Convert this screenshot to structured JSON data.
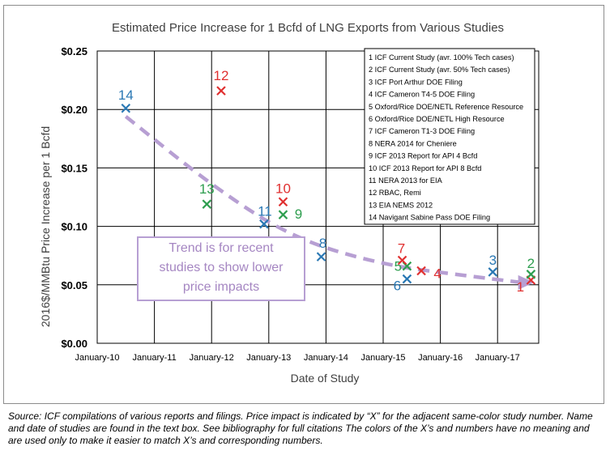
{
  "chart_data": {
    "type": "scatter",
    "title": "Estimated Price Increase for 1 Bcfd of LNG Exports from Various Studies",
    "xlabel": "Date of Study",
    "ylabel": "2016$/MMBtu Price Increase per 1 Bcfd",
    "x_ticks": [
      "January-10",
      "January-11",
      "January-12",
      "January-13",
      "January-14",
      "January-15",
      "January-16",
      "January-17"
    ],
    "y_ticks": [
      "$0.00",
      "$0.05",
      "$0.10",
      "$0.15",
      "$0.20",
      "$0.25"
    ],
    "xlim": [
      "2010-01",
      "2017-11"
    ],
    "ylim": [
      0,
      0.25
    ],
    "grid": true,
    "points": [
      {
        "id": "1",
        "x": "2017-08",
        "y": 0.054,
        "color": "#e03030"
      },
      {
        "id": "2",
        "x": "2017-08",
        "y": 0.059,
        "color": "#2e9e4f"
      },
      {
        "id": "3",
        "x": "2016-12",
        "y": 0.061,
        "color": "#2a78b4"
      },
      {
        "id": "4",
        "x": "2015-09",
        "y": 0.062,
        "color": "#e03030"
      },
      {
        "id": "5",
        "x": "2015-06",
        "y": 0.066,
        "color": "#2e9e4f"
      },
      {
        "id": "6",
        "x": "2015-06",
        "y": 0.055,
        "color": "#2a78b4"
      },
      {
        "id": "7",
        "x": "2015-05",
        "y": 0.071,
        "color": "#e03030"
      },
      {
        "id": "8",
        "x": "2013-12",
        "y": 0.074,
        "color": "#2a78b4"
      },
      {
        "id": "9",
        "x": "2013-04",
        "y": 0.11,
        "color": "#2e9e4f"
      },
      {
        "id": "10",
        "x": "2013-04",
        "y": 0.121,
        "color": "#e03030"
      },
      {
        "id": "11",
        "x": "2012-12",
        "y": 0.102,
        "color": "#2a78b4"
      },
      {
        "id": "12",
        "x": "2012-03",
        "y": 0.216,
        "color": "#e03030"
      },
      {
        "id": "13",
        "x": "2011-12",
        "y": 0.119,
        "color": "#2e9e4f"
      },
      {
        "id": "14",
        "x": "2010-07",
        "y": 0.201,
        "color": "#2a78b4"
      }
    ],
    "legend": {
      "placement": "top-right",
      "entries": [
        "1 ICF Current Study (avr. 100% Tech cases)",
        "2 ICF Current Study (avr. 50% Tech cases)",
        "3 ICF Port Arthur DOE Filing",
        "4 ICF Cameron T4-5 DOE Filing",
        "5 Oxford/Rice DOE/NETL Reference Resource",
        "6 Oxford/Rice DOE/NETL High Resource",
        "7 ICF Cameron T1-3 DOE Filing",
        "8 NERA 2014 for Cheniere",
        "9 ICF 2013 Report for API 4 Bcfd",
        "10 ICF 2013 Report for API 8 Bcfd",
        "11 NERA 2013 for EIA",
        "12 RBAC, Remi",
        "13 EIA NEMS 2012",
        "14 Navigant Sabine Pass DOE Filing"
      ]
    },
    "trend": {
      "lines": [
        "Trend is for recent",
        "studies to show lower",
        "price impacts"
      ],
      "color": "#b79fd3",
      "path": [
        [
          "2010-07",
          0.194
        ],
        [
          "2012-01",
          0.135
        ],
        [
          "2013-06",
          0.09
        ],
        [
          "2015-01",
          0.067
        ],
        [
          "2016-06",
          0.058
        ],
        [
          "2017-06",
          0.052
        ]
      ]
    }
  },
  "caption": "Source: ICF compilations of various reports and filings. Price impact is indicated by “X” for the adjacent same-color study number. Name and date of studies are found in the text box. See bibliography for full citations The colors of the X’s and numbers have no meaning and are used only to make it easier to match X’s and corresponding numbers."
}
